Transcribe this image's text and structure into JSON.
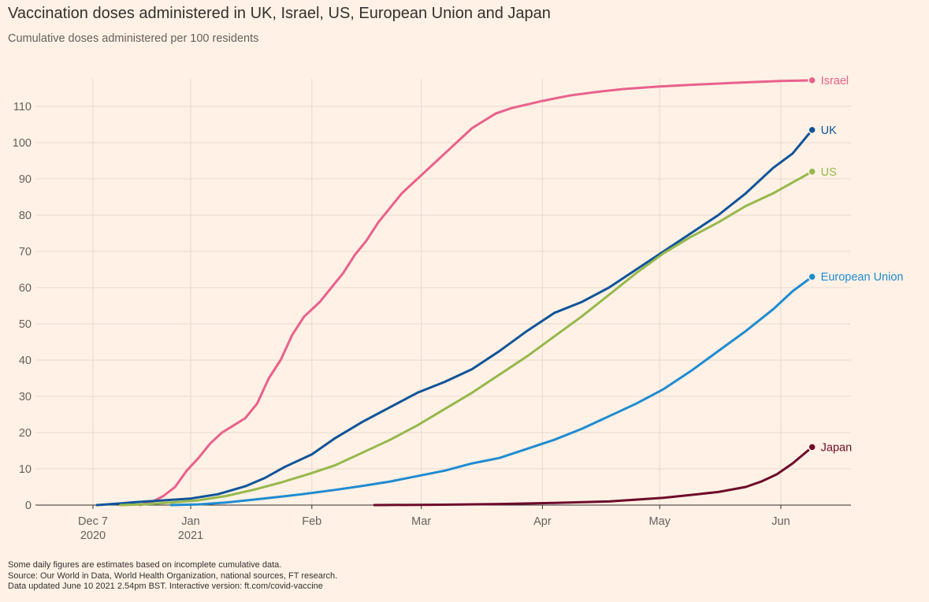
{
  "header": {
    "title": "Vaccination doses administered in UK, Israel, US, European Union and Japan",
    "subtitle": "Cumulative doses administered per 100 residents"
  },
  "footer": {
    "line1": "Some daily figures are estimates based on incomplete cumulative data.",
    "line2": "Source: Our World in Data, World Health Organization, national sources, FT research.",
    "line3": "Data updated June 10 2021 2.54pm BST. Interactive version: ft.com/covid-vaccine"
  },
  "colors": {
    "background": "#fff1e5",
    "grid": "#e6d9ce",
    "axis": "#33302e",
    "text": "#66605c"
  },
  "chart_data": {
    "type": "line",
    "title": "Vaccination doses administered in UK, Israel, US, European Union and Japan",
    "subtitle": "Cumulative doses administered per 100 residents",
    "xlabel": "",
    "ylabel": "",
    "x_range": [
      "2020-12-01",
      "2021-06-13"
    ],
    "ylim": [
      0,
      117
    ],
    "y_ticks": [
      0,
      10,
      20,
      30,
      40,
      50,
      60,
      70,
      80,
      90,
      100,
      110
    ],
    "x_ticks": [
      {
        "date": "2020-12-07",
        "label": "Dec 7",
        "sublabel": "2020"
      },
      {
        "date": "2021-01-01",
        "label": "Jan",
        "sublabel": "2021"
      },
      {
        "date": "2021-02-01",
        "label": "Feb",
        "sublabel": ""
      },
      {
        "date": "2021-03-01",
        "label": "Mar",
        "sublabel": ""
      },
      {
        "date": "2021-04-01",
        "label": "Apr",
        "sublabel": ""
      },
      {
        "date": "2021-05-01",
        "label": "May",
        "sublabel": ""
      },
      {
        "date": "2021-06-01",
        "label": "Jun",
        "sublabel": ""
      }
    ],
    "grid": true,
    "legend": "direct labels at line ends",
    "series": [
      {
        "name": "Israel",
        "color": "#e8618c",
        "points": [
          [
            "2020-12-19",
            0
          ],
          [
            "2020-12-22",
            0.8
          ],
          [
            "2020-12-25",
            2.5
          ],
          [
            "2020-12-28",
            5
          ],
          [
            "2020-12-31",
            9.5
          ],
          [
            "2021-01-03",
            13
          ],
          [
            "2021-01-06",
            17
          ],
          [
            "2021-01-09",
            20
          ],
          [
            "2021-01-12",
            22
          ],
          [
            "2021-01-15",
            24
          ],
          [
            "2021-01-18",
            28
          ],
          [
            "2021-01-21",
            35
          ],
          [
            "2021-01-24",
            40
          ],
          [
            "2021-01-27",
            47
          ],
          [
            "2021-01-30",
            52
          ],
          [
            "2021-02-03",
            56
          ],
          [
            "2021-02-06",
            60
          ],
          [
            "2021-02-09",
            64
          ],
          [
            "2021-02-12",
            69
          ],
          [
            "2021-02-15",
            73
          ],
          [
            "2021-02-18",
            78
          ],
          [
            "2021-02-21",
            82
          ],
          [
            "2021-02-24",
            86
          ],
          [
            "2021-02-27",
            89
          ],
          [
            "2021-03-02",
            92
          ],
          [
            "2021-03-05",
            95
          ],
          [
            "2021-03-08",
            98
          ],
          [
            "2021-03-11",
            101
          ],
          [
            "2021-03-14",
            104
          ],
          [
            "2021-03-17",
            106
          ],
          [
            "2021-03-20",
            108
          ],
          [
            "2021-03-24",
            109.5
          ],
          [
            "2021-03-28",
            110.5
          ],
          [
            "2021-04-01",
            111.5
          ],
          [
            "2021-04-08",
            113
          ],
          [
            "2021-04-15",
            114
          ],
          [
            "2021-04-22",
            114.8
          ],
          [
            "2021-05-01",
            115.5
          ],
          [
            "2021-05-10",
            116
          ],
          [
            "2021-05-20",
            116.5
          ],
          [
            "2021-06-01",
            117
          ],
          [
            "2021-06-09",
            117.2
          ]
        ]
      },
      {
        "name": "UK",
        "color": "#0f5499",
        "points": [
          [
            "2020-12-08",
            0
          ],
          [
            "2020-12-13",
            0.4
          ],
          [
            "2020-12-18",
            0.8
          ],
          [
            "2020-12-25",
            1.3
          ],
          [
            "2021-01-01",
            1.8
          ],
          [
            "2021-01-08",
            3
          ],
          [
            "2021-01-15",
            5.2
          ],
          [
            "2021-01-20",
            7.5
          ],
          [
            "2021-01-25",
            10.5
          ],
          [
            "2021-02-01",
            14
          ],
          [
            "2021-02-07",
            18.5
          ],
          [
            "2021-02-14",
            23
          ],
          [
            "2021-02-21",
            27
          ],
          [
            "2021-02-28",
            31
          ],
          [
            "2021-03-07",
            34
          ],
          [
            "2021-03-14",
            37.5
          ],
          [
            "2021-03-21",
            42.5
          ],
          [
            "2021-03-28",
            48
          ],
          [
            "2021-04-04",
            53
          ],
          [
            "2021-04-11",
            56
          ],
          [
            "2021-04-18",
            60
          ],
          [
            "2021-04-25",
            65
          ],
          [
            "2021-05-02",
            70
          ],
          [
            "2021-05-09",
            75
          ],
          [
            "2021-05-16",
            80
          ],
          [
            "2021-05-23",
            86
          ],
          [
            "2021-05-30",
            93
          ],
          [
            "2021-06-04",
            97
          ],
          [
            "2021-06-09",
            103.5
          ]
        ]
      },
      {
        "name": "US",
        "color": "#96b84c",
        "points": [
          [
            "2020-12-14",
            0
          ],
          [
            "2020-12-20",
            0.2
          ],
          [
            "2020-12-27",
            0.7
          ],
          [
            "2021-01-03",
            1.3
          ],
          [
            "2021-01-10",
            2.5
          ],
          [
            "2021-01-17",
            4.2
          ],
          [
            "2021-01-24",
            6.2
          ],
          [
            "2021-01-31",
            8.5
          ],
          [
            "2021-02-07",
            11
          ],
          [
            "2021-02-14",
            14.5
          ],
          [
            "2021-02-21",
            18
          ],
          [
            "2021-02-28",
            22
          ],
          [
            "2021-03-07",
            26.5
          ],
          [
            "2021-03-14",
            31
          ],
          [
            "2021-03-21",
            36
          ],
          [
            "2021-03-28",
            41
          ],
          [
            "2021-04-04",
            46.5
          ],
          [
            "2021-04-11",
            52
          ],
          [
            "2021-04-18",
            58
          ],
          [
            "2021-04-25",
            64
          ],
          [
            "2021-05-02",
            69.5
          ],
          [
            "2021-05-09",
            74
          ],
          [
            "2021-05-16",
            78
          ],
          [
            "2021-05-23",
            82.5
          ],
          [
            "2021-05-30",
            86
          ],
          [
            "2021-06-04",
            89
          ],
          [
            "2021-06-09",
            92
          ]
        ]
      },
      {
        "name": "European Union",
        "color": "#1f8bd1",
        "points": [
          [
            "2020-12-27",
            0
          ],
          [
            "2021-01-03",
            0.2
          ],
          [
            "2021-01-10",
            0.7
          ],
          [
            "2021-01-17",
            1.5
          ],
          [
            "2021-01-24",
            2.3
          ],
          [
            "2021-01-31",
            3.2
          ],
          [
            "2021-02-07",
            4.2
          ],
          [
            "2021-02-14",
            5.3
          ],
          [
            "2021-02-21",
            6.5
          ],
          [
            "2021-02-28",
            8
          ],
          [
            "2021-03-07",
            9.5
          ],
          [
            "2021-03-14",
            11.5
          ],
          [
            "2021-03-21",
            13
          ],
          [
            "2021-03-28",
            15.5
          ],
          [
            "2021-04-04",
            18
          ],
          [
            "2021-04-11",
            21
          ],
          [
            "2021-04-18",
            24.5
          ],
          [
            "2021-04-25",
            28
          ],
          [
            "2021-05-02",
            32
          ],
          [
            "2021-05-09",
            37
          ],
          [
            "2021-05-16",
            42.5
          ],
          [
            "2021-05-23",
            48
          ],
          [
            "2021-05-30",
            54
          ],
          [
            "2021-06-04",
            59
          ],
          [
            "2021-06-09",
            63
          ]
        ]
      },
      {
        "name": "Japan",
        "color": "#6d0b2c",
        "points": [
          [
            "2021-02-17",
            0
          ],
          [
            "2021-03-07",
            0.1
          ],
          [
            "2021-03-21",
            0.3
          ],
          [
            "2021-04-04",
            0.6
          ],
          [
            "2021-04-18",
            1
          ],
          [
            "2021-05-02",
            2
          ],
          [
            "2021-05-09",
            2.8
          ],
          [
            "2021-05-16",
            3.6
          ],
          [
            "2021-05-23",
            5
          ],
          [
            "2021-05-27",
            6.5
          ],
          [
            "2021-05-31",
            8.5
          ],
          [
            "2021-06-04",
            11.5
          ],
          [
            "2021-06-09",
            16
          ]
        ]
      }
    ]
  }
}
